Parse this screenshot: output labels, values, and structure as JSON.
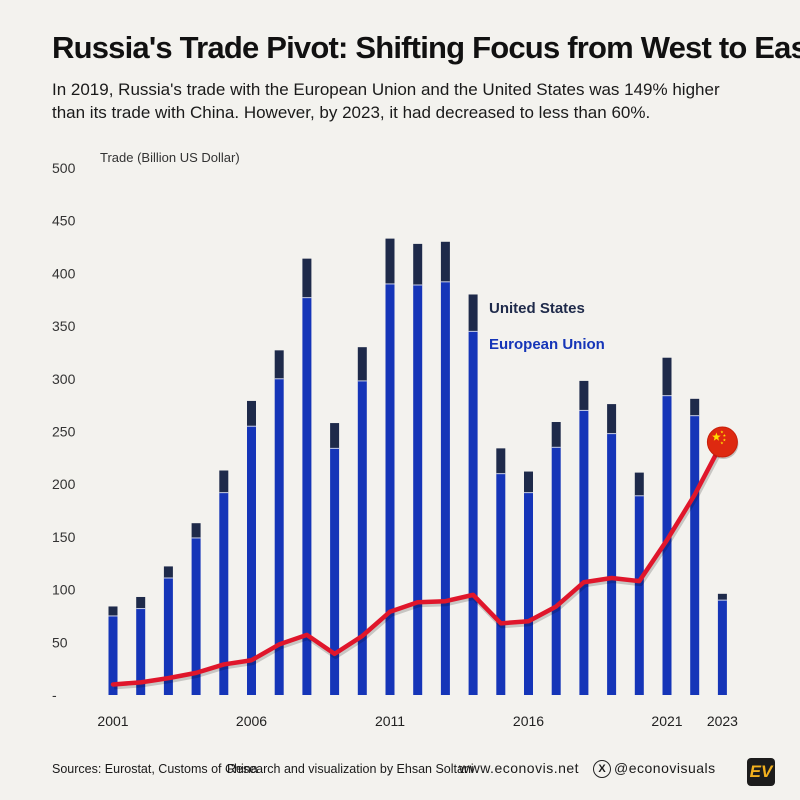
{
  "header": {
    "title": "Russia's Trade Pivot: Shifting Focus from West to East",
    "subtitle": "In 2019, Russia's trade with the European Union and the United States was 149% higher than its trade with China. However, by 2023, it had decreased to less than 60%."
  },
  "footer": {
    "sources": "Sources: Eurostat, Customs of China",
    "credit": "Research and visualization by Ehsan Soltani",
    "website": "www.econovis.net",
    "social_handle": "@econovisuals",
    "social_icon": "x-logo-icon",
    "logo_text": "EV"
  },
  "colors": {
    "eu": "#1535b8",
    "us": "#1e2a4a",
    "china_line": "#e0162b",
    "background": "#f3f2ee"
  },
  "chart_data": {
    "type": "bar",
    "stacked": true,
    "ylabel": "Trade (Billion US Dollar)",
    "ylim": [
      0,
      500
    ],
    "yticks": [
      0,
      50,
      100,
      150,
      200,
      250,
      300,
      350,
      400,
      450,
      500
    ],
    "ytick_labels": [
      "-",
      "50",
      "100",
      "150",
      "200",
      "250",
      "300",
      "350",
      "400",
      "450",
      "500"
    ],
    "x": [
      2001,
      2002,
      2003,
      2004,
      2005,
      2006,
      2007,
      2008,
      2009,
      2010,
      2011,
      2012,
      2013,
      2014,
      2015,
      2016,
      2017,
      2018,
      2019,
      2020,
      2021,
      2022,
      2023
    ],
    "xtick_labels": [
      "2001",
      "",
      "",
      "",
      "",
      "2006",
      "",
      "",
      "",
      "",
      "2011",
      "",
      "",
      "",
      "",
      "2016",
      "",
      "",
      "",
      "",
      "2021",
      "",
      "2023"
    ],
    "series": [
      {
        "name": "European Union",
        "kind": "bar",
        "values": [
          75,
          82,
          111,
          149,
          192,
          255,
          300,
          377,
          234,
          298,
          390,
          389,
          392,
          345,
          210,
          192,
          235,
          270,
          248,
          189,
          284,
          265,
          90
        ]
      },
      {
        "name": "United States",
        "kind": "bar",
        "values": [
          9,
          11,
          11,
          14,
          21,
          24,
          27,
          37,
          24,
          32,
          43,
          39,
          38,
          35,
          24,
          20,
          24,
          28,
          28,
          22,
          36,
          16,
          6
        ]
      },
      {
        "name": "",
        "kind": "line",
        "marker_icon": "china-flag-icon",
        "values": [
          10,
          12,
          16,
          21,
          29,
          33,
          48,
          57,
          39,
          56,
          79,
          88,
          89,
          95,
          68,
          70,
          84,
          107,
          111,
          108,
          147,
          190,
          240
        ]
      }
    ],
    "legend": [
      "United States",
      "European Union"
    ],
    "legend_placement": "inside-upper-right",
    "grid": false
  }
}
